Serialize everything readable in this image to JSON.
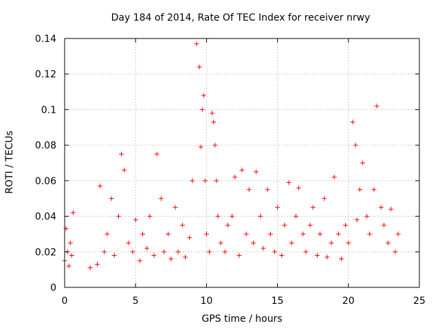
{
  "chart_data": {
    "type": "scatter",
    "title": "Day 184 of 2014, Rate Of TEC Index for receiver nrwy",
    "xlabel": "GPS time / hours",
    "ylabel": "ROTI / TECUs",
    "xlim": [
      0,
      25
    ],
    "ylim": [
      0,
      0.14
    ],
    "xticks": [
      0,
      5,
      10,
      15,
      20,
      25
    ],
    "xtick_labels": [
      "0",
      "5",
      "10",
      "15",
      "20",
      "25"
    ],
    "yticks": [
      0,
      0.02,
      0.04,
      0.06,
      0.08,
      0.1,
      0.12,
      0.14
    ],
    "ytick_labels": [
      "0",
      "0.02",
      "0.04",
      "0.06",
      "0.08",
      "0.1",
      "0.12",
      "0.14"
    ],
    "grid": true,
    "marker": "+",
    "color": "#ff0000",
    "series": [
      {
        "name": "ROTI",
        "x": [
          0.0,
          0.1,
          0.2,
          0.3,
          0.4,
          0.5,
          0.6,
          1.8,
          2.3,
          2.5,
          2.8,
          3.0,
          3.3,
          3.5,
          3.8,
          4.0,
          4.2,
          4.5,
          4.8,
          5.0,
          5.3,
          5.5,
          5.8,
          6.0,
          6.3,
          6.5,
          6.8,
          7.0,
          7.3,
          7.5,
          7.8,
          8.0,
          8.3,
          8.5,
          8.8,
          9.0,
          9.3,
          9.5,
          9.6,
          9.7,
          9.8,
          9.9,
          10.0,
          10.2,
          10.4,
          10.5,
          10.6,
          10.7,
          10.8,
          11.0,
          11.3,
          11.5,
          11.8,
          12.0,
          12.3,
          12.5,
          12.8,
          13.0,
          13.3,
          13.5,
          13.8,
          14.0,
          14.3,
          14.5,
          14.8,
          15.0,
          15.3,
          15.5,
          15.8,
          16.0,
          16.3,
          16.5,
          16.8,
          17.0,
          17.3,
          17.5,
          17.8,
          18.0,
          18.3,
          18.5,
          18.8,
          19.0,
          19.3,
          19.5,
          19.8,
          20.0,
          20.3,
          20.5,
          20.6,
          20.8,
          21.0,
          21.3,
          21.5,
          21.8,
          22.0,
          22.3,
          22.5,
          22.8,
          23.0,
          23.3,
          23.5
        ],
        "y": [
          0.015,
          0.033,
          0.02,
          0.012,
          0.025,
          0.018,
          0.042,
          0.011,
          0.013,
          0.057,
          0.02,
          0.03,
          0.05,
          0.018,
          0.04,
          0.075,
          0.066,
          0.025,
          0.02,
          0.038,
          0.015,
          0.03,
          0.022,
          0.04,
          0.018,
          0.075,
          0.05,
          0.02,
          0.03,
          0.016,
          0.045,
          0.02,
          0.035,
          0.017,
          0.028,
          0.06,
          0.137,
          0.124,
          0.079,
          0.1,
          0.108,
          0.06,
          0.03,
          0.02,
          0.098,
          0.093,
          0.08,
          0.06,
          0.04,
          0.025,
          0.02,
          0.035,
          0.04,
          0.062,
          0.018,
          0.066,
          0.03,
          0.055,
          0.025,
          0.065,
          0.04,
          0.022,
          0.055,
          0.03,
          0.02,
          0.045,
          0.018,
          0.035,
          0.059,
          0.025,
          0.04,
          0.056,
          0.03,
          0.02,
          0.035,
          0.045,
          0.018,
          0.03,
          0.05,
          0.017,
          0.025,
          0.062,
          0.03,
          0.016,
          0.035,
          0.025,
          0.093,
          0.08,
          0.038,
          0.055,
          0.07,
          0.04,
          0.03,
          0.055,
          0.102,
          0.045,
          0.035,
          0.025,
          0.044,
          0.02,
          0.03
        ]
      }
    ]
  }
}
